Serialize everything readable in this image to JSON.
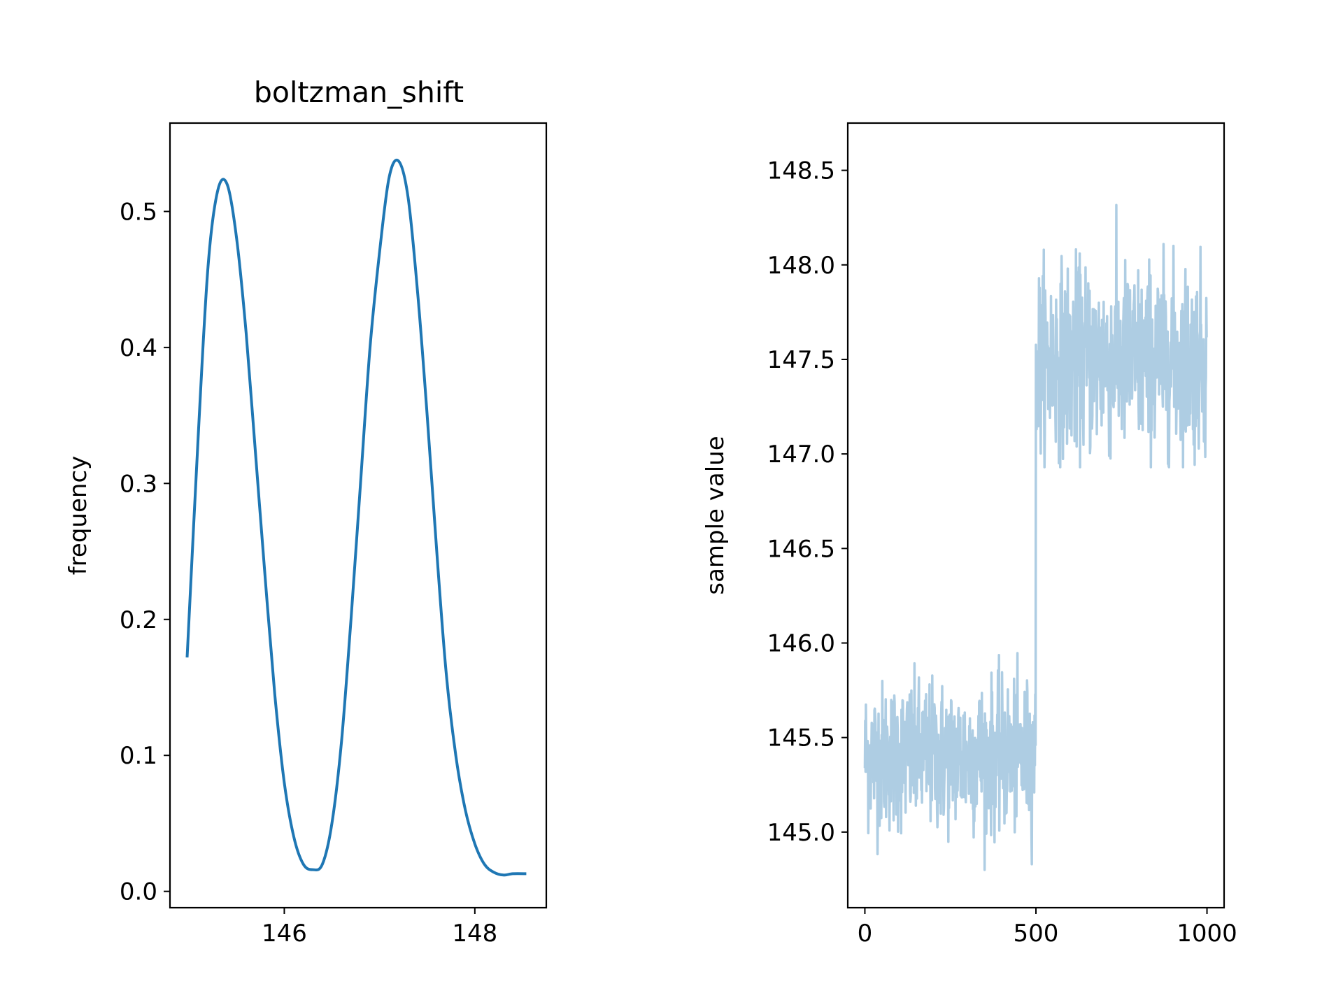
{
  "chart_data": [
    {
      "type": "line",
      "title": "boltzman_shift",
      "xlabel": "",
      "ylabel": "frequency",
      "xlim": [
        144.8,
        148.75
      ],
      "ylim": [
        -0.012,
        0.565
      ],
      "xticks": [
        146,
        148
      ],
      "xtick_labels": [
        "146",
        "148"
      ],
      "yticks": [
        0.0,
        0.1,
        0.2,
        0.3,
        0.4,
        0.5
      ],
      "ytick_labels": [
        "0.0",
        "0.1",
        "0.2",
        "0.3",
        "0.4",
        "0.5"
      ],
      "grid": false,
      "color": "#1f77b4",
      "series": [
        {
          "x": [
            144.98,
            145.1,
            145.2,
            145.3,
            145.4,
            145.5,
            145.6,
            145.7,
            145.8,
            145.9,
            146.0,
            146.1,
            146.2,
            146.3,
            146.4,
            146.5,
            146.6,
            146.7,
            146.8,
            146.9,
            147.0,
            147.1,
            147.2,
            147.3,
            147.4,
            147.5,
            147.6,
            147.7,
            147.8,
            147.9,
            148.0,
            148.1,
            148.2,
            148.3,
            148.4,
            148.54
          ],
          "y": [
            0.172,
            0.34,
            0.46,
            0.515,
            0.52,
            0.48,
            0.41,
            0.32,
            0.23,
            0.145,
            0.08,
            0.04,
            0.02,
            0.016,
            0.02,
            0.05,
            0.11,
            0.2,
            0.3,
            0.4,
            0.47,
            0.525,
            0.537,
            0.51,
            0.44,
            0.35,
            0.25,
            0.16,
            0.1,
            0.06,
            0.035,
            0.02,
            0.014,
            0.012,
            0.013,
            0.013
          ]
        }
      ]
    },
    {
      "type": "line",
      "title": "",
      "xlabel": "",
      "ylabel": "sample value",
      "xlim": [
        -50,
        1050
      ],
      "ylim": [
        144.6,
        148.75
      ],
      "xticks": [
        0,
        500,
        1000
      ],
      "xtick_labels": [
        "0",
        "500",
        "1000"
      ],
      "yticks": [
        145.0,
        145.5,
        146.0,
        146.5,
        147.0,
        147.5,
        148.0,
        148.5
      ],
      "ytick_labels": [
        "145.0",
        "145.5",
        "146.0",
        "146.5",
        "147.0",
        "147.5",
        "148.0",
        "148.5"
      ],
      "grid": false,
      "color": "#aecde3",
      "series": [
        {
          "n_samples": 1000,
          "segments": [
            {
              "x_start": 0,
              "x_end": 500,
              "mean": 145.4,
              "min": 144.8,
              "max": 146.08
            },
            {
              "x_start": 500,
              "x_end": 1000,
              "mean": 147.5,
              "min": 146.93,
              "max": 148.55
            }
          ]
        }
      ]
    }
  ]
}
